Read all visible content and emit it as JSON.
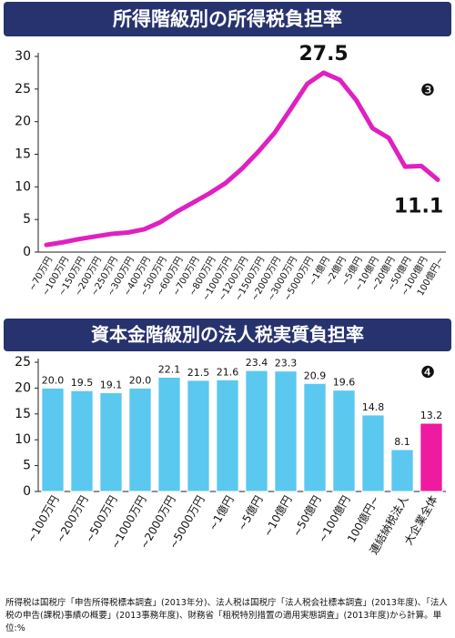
{
  "chart_data": [
    {
      "type": "line",
      "title": "所得階級別の所得税負担率",
      "annotation": "❸",
      "categories": [
        "~70万円",
        "~100万円",
        "~150万円",
        "~200万円",
        "~250万円",
        "~300万円",
        "~400万円",
        "~500万円",
        "~600万円",
        "~700万円",
        "~800万円",
        "~1000万円",
        "~1200万円",
        "~1500万円",
        "~2000万円",
        "~3000万円",
        "~5000万円",
        "~1億円",
        "~2億円",
        "~5億円",
        "~10億円",
        "~20億円",
        "~50億円",
        "~100億円",
        "100億円~"
      ],
      "values": [
        1.1,
        1.5,
        2.0,
        2.4,
        2.8,
        3.0,
        3.5,
        4.6,
        6.2,
        7.6,
        9.0,
        10.6,
        12.8,
        15.4,
        18.3,
        22.0,
        25.8,
        27.5,
        26.4,
        23.3,
        19.0,
        17.5,
        13.1,
        13.2,
        11.1
      ],
      "value_labels": [
        null,
        null,
        null,
        null,
        null,
        null,
        null,
        null,
        null,
        null,
        null,
        null,
        null,
        null,
        null,
        null,
        null,
        "27.5",
        null,
        null,
        null,
        null,
        null,
        null,
        "11.1"
      ],
      "color": "#e020c0",
      "ylim": [
        0,
        30
      ],
      "yticks": [
        0,
        5,
        10,
        15,
        20,
        25,
        30
      ]
    },
    {
      "type": "bar",
      "title": "資本金階級別の法人税実質負担率",
      "annotation": "❹",
      "categories": [
        "~100万円",
        "~200万円",
        "~500万円",
        "~1000万円",
        "~2000万円",
        "~5000万円",
        "~1億円",
        "~5億円",
        "~10億円",
        "~50億円",
        "~100億円",
        "100億円~",
        "連結納税法人",
        "大企業全体"
      ],
      "values": [
        20.0,
        19.5,
        19.1,
        20.0,
        22.1,
        21.5,
        21.6,
        23.4,
        23.3,
        20.9,
        19.6,
        14.8,
        8.1,
        13.2
      ],
      "value_labels": [
        "20.0",
        "19.5",
        "19.1",
        "20.0",
        "22.1",
        "21.5",
        "21.6",
        "23.4",
        "23.3",
        "20.9",
        "19.6",
        "14.8",
        "8.1",
        "13.2"
      ],
      "colors": [
        "#5bc8f0",
        "#5bc8f0",
        "#5bc8f0",
        "#5bc8f0",
        "#5bc8f0",
        "#5bc8f0",
        "#5bc8f0",
        "#5bc8f0",
        "#5bc8f0",
        "#5bc8f0",
        "#5bc8f0",
        "#5bc8f0",
        "#5bc8f0",
        "#ee1aa0"
      ],
      "ylim": [
        0,
        25
      ],
      "yticks": [
        0,
        5,
        10,
        15,
        20,
        25
      ]
    }
  ],
  "footnote": "所得税は国税庁「申告所得税標本調査」(2013年分)、法人税は国税庁「法人税会社標本調査」(2013年度)、「法人税の申告(課税)事績の概要」(2013事務年度)、財務省「租税特別措置の適用実態調査」(2013年度)から計算。単位:%"
}
